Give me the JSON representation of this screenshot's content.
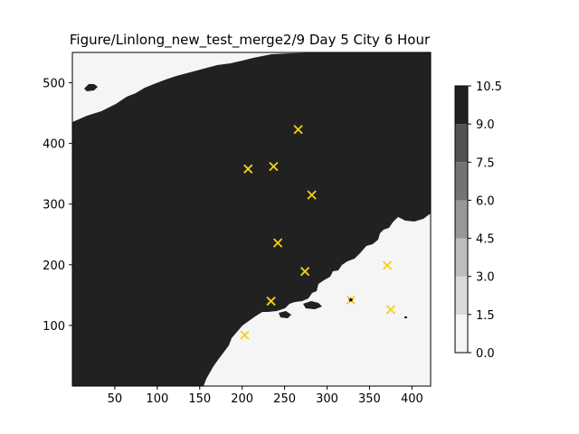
{
  "chart_data": {
    "type": "heatmap",
    "title": "Figure/Linlong_new_test_merge2/9 Day 5 City 6 Hour",
    "xlabel": "",
    "ylabel": "",
    "xlim": [
      0,
      422
    ],
    "ylim": [
      0,
      550
    ],
    "x_ticks": [
      50,
      100,
      150,
      200,
      250,
      300,
      350,
      400
    ],
    "y_ticks": [
      100,
      200,
      300,
      400,
      500
    ],
    "grid": false,
    "field": {
      "high_value_color": "#212121",
      "low_value_color": "#f5f5f5",
      "description_regions": [
        "land (dark, ~10)",
        "sea (light, ~0)"
      ]
    },
    "colorbar": {
      "levels": [
        0.0,
        1.5,
        3.0,
        4.5,
        6.0,
        7.5,
        9.0,
        10.5
      ],
      "tick_labels": [
        "0.0",
        "1.5",
        "3.0",
        "4.5",
        "6.0",
        "7.5",
        "9.0",
        "10.5"
      ],
      "colors": [
        "#f5f5f5",
        "#d9d9d9",
        "#bdbdbd",
        "#979797",
        "#737373",
        "#525252",
        "#212121"
      ]
    },
    "markers": {
      "symbol": "x",
      "color": "#f2d21b",
      "points": [
        {
          "x": 266,
          "y": 423
        },
        {
          "x": 207,
          "y": 358
        },
        {
          "x": 237,
          "y": 362
        },
        {
          "x": 282,
          "y": 315
        },
        {
          "x": 242,
          "y": 236
        },
        {
          "x": 274,
          "y": 189
        },
        {
          "x": 371,
          "y": 199
        },
        {
          "x": 234,
          "y": 140
        },
        {
          "x": 328,
          "y": 142
        },
        {
          "x": 375,
          "y": 126
        },
        {
          "x": 203,
          "y": 84
        }
      ]
    },
    "star_marker": {
      "x": 328,
      "y": 142,
      "color": "#000000"
    }
  }
}
